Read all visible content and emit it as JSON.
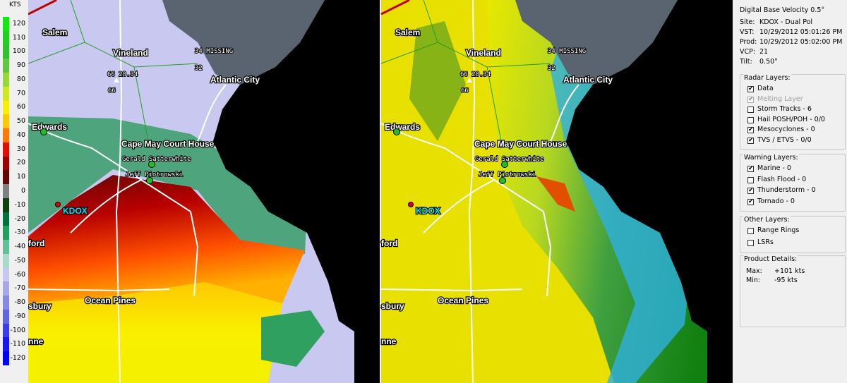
{
  "color_scale": {
    "unit": "KTS",
    "entries": [
      {
        "value": 120,
        "color": "#10e810"
      },
      {
        "value": 110,
        "color": "#20d020"
      },
      {
        "value": 100,
        "color": "#30c030"
      },
      {
        "value": 90,
        "color": "#60c840"
      },
      {
        "value": 80,
        "color": "#98d838"
      },
      {
        "value": 70,
        "color": "#d0e820"
      },
      {
        "value": 60,
        "color": "#f8f000"
      },
      {
        "value": 50,
        "color": "#ffc800"
      },
      {
        "value": 40,
        "color": "#ff7a00"
      },
      {
        "value": 30,
        "color": "#e01000"
      },
      {
        "value": 20,
        "color": "#a00000"
      },
      {
        "value": 10,
        "color": "#600808"
      },
      {
        "value": 0,
        "color": "#808080"
      },
      {
        "value": -10,
        "color": "#104010"
      },
      {
        "value": -20,
        "color": "#007040"
      },
      {
        "value": -30,
        "color": "#20a060"
      },
      {
        "value": -40,
        "color": "#60c098"
      },
      {
        "value": -50,
        "color": "#a8dcc8"
      },
      {
        "value": -60,
        "color": "#c8c8ec"
      },
      {
        "value": -70,
        "color": "#a8a8e4"
      },
      {
        "value": -80,
        "color": "#8888e0"
      },
      {
        "value": -90,
        "color": "#6464e0"
      },
      {
        "value": -100,
        "color": "#3c3cec"
      },
      {
        "value": -110,
        "color": "#1818f4"
      },
      {
        "value": -120,
        "color": "#0000ff"
      }
    ]
  },
  "map": {
    "labels": [
      "Salem",
      "Vineland",
      "Atlantic City",
      "Edwards",
      "Cape May Court House",
      "KDOX",
      "ford",
      "Ocean Pines",
      "sbury",
      "nne"
    ],
    "station_labels": [
      "66 28.34",
      "66",
      "34 MISSING",
      "32",
      "Gerald Satterwhite",
      "Jeff Piotrowski"
    ]
  },
  "product": {
    "title": "Digital Base Velocity 0.5°",
    "rows": [
      {
        "label": "Site:",
        "value": "KDOX - Dual Pol"
      },
      {
        "label": "VST:",
        "value": "10/29/2012 05:01:26 PM"
      },
      {
        "label": "Prod:",
        "value": "10/29/2012 05:02:00 PM"
      },
      {
        "label": "VCP:",
        "value": "21"
      },
      {
        "label": "Tilt:",
        "value": "0.50°"
      }
    ]
  },
  "layer_groups": [
    {
      "title": "Radar Layers:",
      "items": [
        {
          "label": "Data",
          "checked": true,
          "enabled": true
        },
        {
          "label": "Melting Layer",
          "checked": true,
          "enabled": false
        },
        {
          "label": "Storm Tracks - 6",
          "checked": false,
          "enabled": true
        },
        {
          "label": "Hail POSH/POH - 0/0",
          "checked": false,
          "enabled": true
        },
        {
          "label": "Mesocyclones - 0",
          "checked": true,
          "enabled": true
        },
        {
          "label": "TVS / ETVS - 0/0",
          "checked": true,
          "enabled": true
        }
      ]
    },
    {
      "title": "Warning Layers:",
      "items": [
        {
          "label": "Marine - 0",
          "checked": true,
          "enabled": true
        },
        {
          "label": "Flash Flood - 0",
          "checked": false,
          "enabled": true
        },
        {
          "label": "Thunderstorm - 0",
          "checked": true,
          "enabled": true
        },
        {
          "label": "Tornado - 0",
          "checked": true,
          "enabled": true
        }
      ]
    },
    {
      "title": "Other Layers:",
      "items": [
        {
          "label": "Range Rings",
          "checked": false,
          "enabled": true
        },
        {
          "label": "LSRs",
          "checked": false,
          "enabled": true
        }
      ]
    }
  ],
  "product_details": {
    "title": "Product Details:",
    "rows": [
      {
        "label": "Max:",
        "value": "+101 kts"
      },
      {
        "label": "Min:",
        "value": "-95 kts"
      }
    ]
  }
}
